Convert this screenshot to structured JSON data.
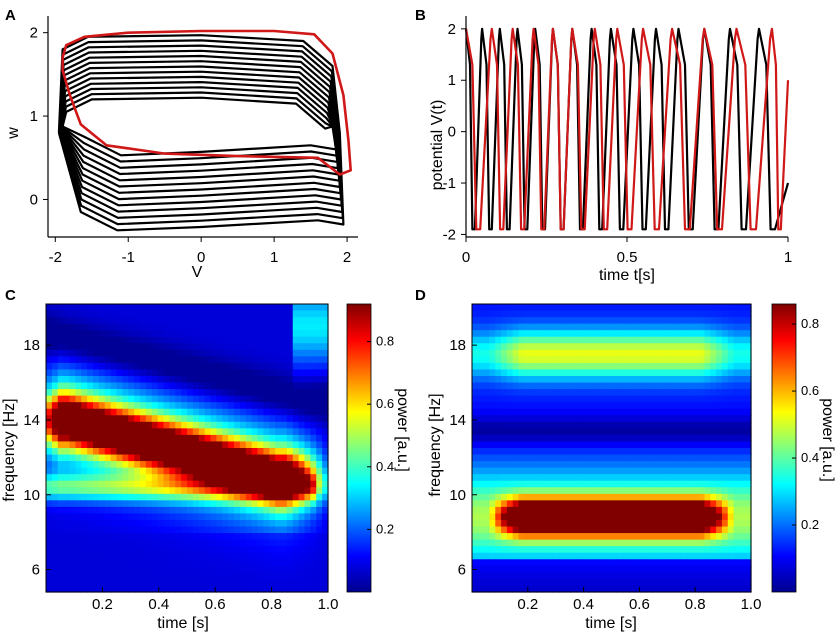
{
  "colors": {
    "black_series": "#000000",
    "red_series": "#d01818",
    "axis": "#000000"
  },
  "chart_data": [
    {
      "panel": "A",
      "type": "line",
      "xlabel": "V",
      "ylabel": "w",
      "xlim": [
        -2.1,
        2.15
      ],
      "ylim": [
        -0.45,
        2.2
      ],
      "xticks": [
        -2,
        -1,
        0,
        1,
        2
      ],
      "yticks": [
        0,
        1,
        2
      ],
      "series": [
        {
          "color": "black",
          "kind": "spiral_trajectory",
          "loops": 13,
          "outer": {
            "top": 1.95,
            "bottom": -0.35
          },
          "inner": {
            "top": 1.2,
            "bottom": 0.55
          },
          "left": -1.95,
          "right": 1.9
        },
        {
          "color": "red",
          "kind": "limit_cycle",
          "points": [
            [
              -1.9,
              1.7
            ],
            [
              -1.85,
              1.85
            ],
            [
              -1.6,
              1.95
            ],
            [
              -1.0,
              2.0
            ],
            [
              0,
              2.02
            ],
            [
              1.0,
              2.02
            ],
            [
              1.55,
              1.98
            ],
            [
              1.8,
              1.75
            ],
            [
              1.95,
              1.25
            ],
            [
              2.02,
              0.7
            ],
            [
              2.05,
              0.35
            ],
            [
              1.9,
              0.3
            ],
            [
              1.6,
              0.5
            ],
            [
              0.5,
              0.52
            ],
            [
              -0.5,
              0.55
            ],
            [
              -1.3,
              0.65
            ],
            [
              -1.65,
              0.9
            ],
            [
              -1.8,
              1.25
            ],
            [
              -1.9,
              1.55
            ],
            [
              -1.9,
              1.7
            ]
          ]
        }
      ]
    },
    {
      "panel": "B",
      "type": "line",
      "xlabel": "time t[s]",
      "ylabel": "potential V(t)",
      "xlim": [
        0,
        1
      ],
      "ylim": [
        -2.05,
        2.25
      ],
      "xticks": [
        0,
        0.5,
        1
      ],
      "xticklabels": [
        "0",
        "0.5",
        "1"
      ],
      "yticks": [
        -2,
        -1,
        0,
        1,
        2
      ],
      "series": [
        {
          "color": "black",
          "kind": "relaxation_oscillation",
          "spike_times": [
            0.0,
            0.05,
            0.105,
            0.16,
            0.215,
            0.27,
            0.33,
            0.39,
            0.45,
            0.52,
            0.59,
            0.66,
            0.74,
            0.82,
            0.91
          ],
          "end_value": -1.0
        },
        {
          "color": "red",
          "kind": "relaxation_oscillation",
          "spike_times": [
            0.0,
            0.08,
            0.145,
            0.21,
            0.27,
            0.33,
            0.4,
            0.47,
            0.55,
            0.64,
            0.74,
            0.84,
            0.95
          ],
          "end_value": 1.0
        }
      ]
    },
    {
      "panel": "C",
      "type": "heatmap",
      "xlabel": "time [s]",
      "ylabel": "frequency [Hz]",
      "xlim": [
        0,
        1.0
      ],
      "ylim": [
        4.8,
        20.2
      ],
      "xticks": [
        0.2,
        0.4,
        0.6,
        0.8,
        1.0
      ],
      "xticklabels": [
        "0.2",
        "0.4",
        "0.6",
        "0.8",
        "1.0"
      ],
      "yticks": [
        6,
        10,
        14,
        18
      ],
      "colorbar": {
        "label": "power [a.u.]",
        "ticks": [
          0.2,
          0.4,
          0.6,
          0.8
        ],
        "vmin": 0.0,
        "vmax": 0.92
      },
      "features": {
        "main_ridge": {
          "start": [
            0.08,
            14.0
          ],
          "end": [
            0.82,
            10.9
          ],
          "width_hz": 1.3,
          "peak": 0.9
        },
        "upper_blue_band": {
          "start_hz": 18.5,
          "end_hz": 15.0,
          "value": 0.08
        },
        "lower_cyan_band": {
          "hz": 10.4,
          "value": 0.3
        }
      }
    },
    {
      "panel": "D",
      "type": "heatmap",
      "xlabel": "time [s]",
      "ylabel": "frequency [Hz]",
      "xlim": [
        0,
        1.0
      ],
      "ylim": [
        4.8,
        20.2
      ],
      "xticks": [
        0.2,
        0.4,
        0.6,
        0.8,
        1.0
      ],
      "xticklabels": [
        "0.2",
        "0.4",
        "0.6",
        "0.8",
        "1.0"
      ],
      "yticks": [
        6,
        10,
        14,
        18
      ],
      "colorbar": {
        "label": "power [a.u.]",
        "ticks": [
          0.2,
          0.4,
          0.6,
          0.8
        ],
        "vmin": 0.0,
        "vmax": 0.86
      },
      "features": {
        "main_band": {
          "hz": 8.8,
          "t_range": [
            0.12,
            0.88
          ],
          "width_hz": 0.9,
          "peak": 0.85
        },
        "upper_band": {
          "hz": 17.5,
          "t_range": [
            0.12,
            0.88
          ],
          "width_hz": 1.3,
          "peak": 0.4
        },
        "dark_band": {
          "hz": 13.4,
          "value": 0.06
        }
      }
    }
  ]
}
